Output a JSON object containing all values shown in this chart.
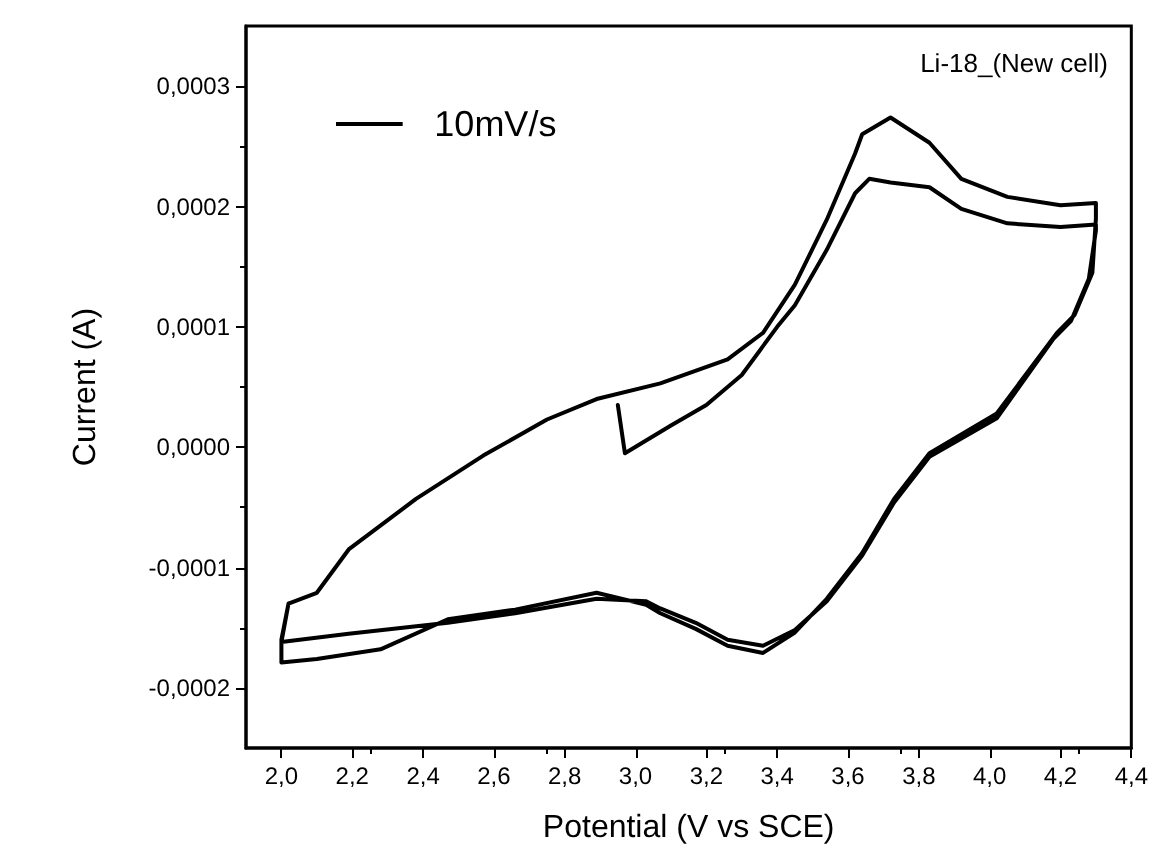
{
  "chart_data": {
    "type": "line",
    "xlabel": "Potential (V vs SCE)",
    "ylabel": "Current (A)",
    "annotations": [
      "Li-18_(New cell)"
    ],
    "xlim": [
      1.9,
      4.4
    ],
    "xticks": [
      {
        "value": 2.0,
        "label": "2,0"
      },
      {
        "value": 2.2,
        "label": "2,2"
      },
      {
        "value": 2.4,
        "label": "2,4"
      },
      {
        "value": 2.6,
        "label": "2,6"
      },
      {
        "value": 2.8,
        "label": "2,8"
      },
      {
        "value": 3.0,
        "label": "3,0"
      },
      {
        "value": 3.2,
        "label": "3,2"
      },
      {
        "value": 3.4,
        "label": "3,4"
      },
      {
        "value": 3.6,
        "label": "3,6"
      },
      {
        "value": 3.8,
        "label": "3,8"
      },
      {
        "value": 4.0,
        "label": "4,0"
      },
      {
        "value": 4.2,
        "label": "4,2"
      },
      {
        "value": 4.4,
        "label": "4,4"
      }
    ],
    "ylim": [
      -0.00025,
      0.00035
    ],
    "yticks": [
      {
        "value": -0.0002,
        "label": "-0,0002"
      },
      {
        "value": -0.0001,
        "label": "-0,0001"
      },
      {
        "value": 0,
        "label": "0,0000"
      },
      {
        "value": 0.0001,
        "label": "0,0001"
      },
      {
        "value": 0.0002,
        "label": "0,0002"
      },
      {
        "value": 0.0003,
        "label": "0,0003"
      }
    ],
    "grid": false,
    "legend": "top left",
    "marker": "none",
    "line_style": "solid",
    "series": [
      {
        "name": "10mV/s",
        "color": "#000000",
        "x": [
          2.95,
          2.97,
          3.1,
          3.2,
          3.3,
          3.4,
          3.45,
          3.54,
          3.62,
          3.66,
          3.72,
          3.83,
          3.92,
          4.05,
          4.2,
          4.3,
          4.3,
          4.28,
          4.23,
          4.18,
          4.02,
          3.83,
          3.73,
          3.64,
          3.54,
          3.45,
          3.36,
          3.26,
          3.17,
          3.07,
          3.03,
          2.89,
          2.66,
          2.47,
          2.19,
          2.0,
          2.02,
          2.1,
          2.19,
          2.38,
          2.57,
          2.75,
          2.89,
          3.07,
          3.26,
          3.36,
          3.45,
          3.54,
          3.62,
          3.64,
          3.72,
          3.83,
          3.92,
          4.05,
          4.2,
          4.3,
          4.3,
          4.29,
          4.24,
          4.19,
          4.02,
          3.83,
          3.73,
          3.64,
          3.54,
          3.45,
          3.36,
          3.26,
          3.17,
          3.07,
          3.03,
          2.89,
          2.66,
          2.47,
          2.28,
          2.1,
          2.0,
          2.0,
          2.02
        ],
        "values": [
          3.5e-05,
          -5e-06,
          1.8e-05,
          3.5e-05,
          6e-05,
          0.0001,
          0.000118,
          0.000164,
          0.000211,
          0.000223,
          0.00022,
          0.000216,
          0.000198,
          0.000186,
          0.000183,
          0.000185,
          0.00018,
          0.00014,
          0.000105,
          9e-05,
          2.4e-05,
          -8e-06,
          -4.6e-05,
          -9e-05,
          -0.000128,
          -0.000152,
          -0.000165,
          -0.00016,
          -0.000146,
          -0.000134,
          -0.000128,
          -0.000126,
          -0.000138,
          -0.000146,
          -0.000155,
          -0.000162,
          -0.00013,
          -0.000121,
          -8.5e-05,
          -4.3e-05,
          -7e-06,
          2.3e-05,
          4e-05,
          5.3e-05,
          7.3e-05,
          9.5e-05,
          0.000135,
          0.000189,
          0.000244,
          0.00026,
          0.000274,
          0.000253,
          0.000223,
          0.000208,
          0.000201,
          0.000203,
          0.00019,
          0.000145,
          0.00011,
          9.5e-05,
          2.8e-05,
          -5e-06,
          -4.3e-05,
          -8.8e-05,
          -0.000126,
          -0.000154,
          -0.000171,
          -0.000165,
          -0.000151,
          -0.000138,
          -0.000131,
          -0.000121,
          -0.000135,
          -0.000143,
          -0.000168,
          -0.000176,
          -0.000179,
          -0.00016,
          -0.00013
        ]
      }
    ]
  }
}
